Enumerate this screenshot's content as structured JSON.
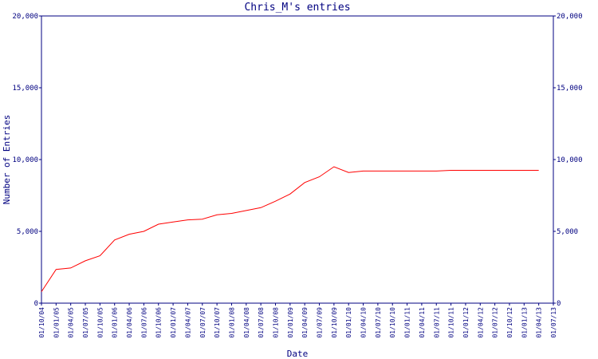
{
  "chart_data": {
    "type": "line",
    "title": "Chris_M's entries",
    "x_label": "Date",
    "y_label": "Number of Entries",
    "categories": [
      "01/10/04",
      "01/01/05",
      "01/04/05",
      "01/07/05",
      "01/10/05",
      "01/01/06",
      "01/04/06",
      "01/07/06",
      "01/10/06",
      "01/01/07",
      "01/04/07",
      "01/07/07",
      "01/10/07",
      "01/01/08",
      "01/04/08",
      "01/07/08",
      "01/10/08",
      "01/01/09",
      "01/04/09",
      "01/07/09",
      "01/10/09",
      "01/01/10",
      "01/04/10",
      "01/07/10",
      "01/10/10",
      "01/01/11",
      "01/04/11",
      "01/07/11",
      "01/10/11",
      "01/01/12",
      "01/04/12",
      "01/07/12",
      "01/10/12",
      "01/01/13",
      "01/04/13",
      "01/07/13"
    ],
    "series": [
      {
        "name": "Chris_M",
        "color": "#ff0000",
        "values": [
          800,
          2350,
          2450,
          2950,
          3300,
          4400,
          4800,
          5000,
          5500,
          5650,
          5800,
          5850,
          6150,
          6250,
          6450,
          6650,
          7100,
          7600,
          8400,
          8800,
          9500,
          9100,
          9200,
          9200,
          9200,
          9200,
          9200,
          9200,
          9250,
          9250,
          9250,
          9250,
          9250,
          9250,
          9250,
          null
        ]
      }
    ],
    "ylim": [
      0,
      20000
    ],
    "yticks": [
      0,
      {
        "value": 5000,
        "label": "5,000"
      },
      {
        "value": 10000,
        "label": "10,000"
      },
      {
        "value": 15000,
        "label": "15,000"
      },
      {
        "value": 20000,
        "label": "20,000"
      }
    ],
    "axis_color": "#000080",
    "grid": false
  }
}
